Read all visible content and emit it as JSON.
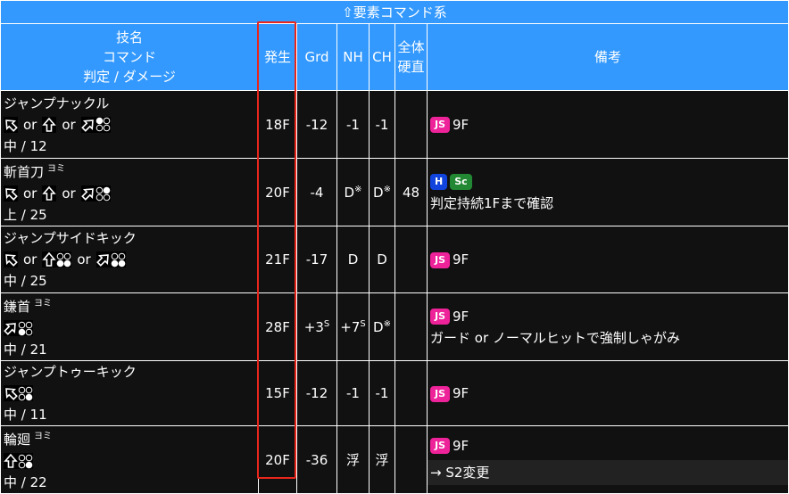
{
  "title": "⇧要素コマンド系",
  "headers": {
    "name": [
      "技名",
      "コマンド",
      "判定 / ダメージ"
    ],
    "startup": "発生",
    "grd": "Grd",
    "nh": "NH",
    "ch": "CH",
    "total": [
      "全体",
      "硬直"
    ],
    "notes": "備考"
  },
  "colors": {
    "header": "#3399ff",
    "js": "#ee2299",
    "h": "#1144dd",
    "sc": "#228833",
    "highlight": "#e8261c"
  },
  "rows": [
    {
      "name": "ジャンプナックル",
      "yomi": "",
      "cmd": [
        {
          "dir": "ub",
          "btn": [
            0,
            0,
            0,
            0
          ]
        },
        "or",
        {
          "dir": "u",
          "btn": [
            0,
            0,
            0,
            0
          ]
        },
        "or",
        {
          "dir": "uf",
          "btn": [
            1,
            0,
            0,
            0
          ]
        }
      ],
      "hit": "中 / 12",
      "startup": "18F",
      "grd": "-12",
      "nh": "-1",
      "ch": "-1",
      "total": "",
      "badges": [
        "JS"
      ],
      "badge_text": "9F",
      "note": "",
      "sub": ""
    },
    {
      "name": "斬首刀",
      "yomi": "ヨミ",
      "cmd": [
        {
          "dir": "ub",
          "btn": [
            0,
            0,
            0,
            0
          ]
        },
        "or",
        {
          "dir": "u",
          "btn": [
            0,
            0,
            0,
            0
          ]
        },
        "or",
        {
          "dir": "uf",
          "btn": [
            0,
            1,
            0,
            0
          ]
        }
      ],
      "hit": "上 / 25",
      "startup": "20F",
      "grd": "-4",
      "nh": "D",
      "nh_sup": "※",
      "ch": "D",
      "ch_sup": "※",
      "total": "48",
      "badges": [
        "H",
        "Sc"
      ],
      "badge_text": "",
      "note": "判定持続1Fまで確認",
      "sub": ""
    },
    {
      "name": "ジャンプサイドキック",
      "yomi": "",
      "cmd": [
        {
          "dir": "ub",
          "btn": [
            0,
            0,
            0,
            0
          ]
        },
        "or",
        {
          "dir": "u",
          "btn": [
            0,
            0,
            1,
            1
          ]
        },
        "or",
        {
          "dir": "uf",
          "btn": [
            0,
            0,
            1,
            1
          ]
        }
      ],
      "hit": "中 / 25",
      "startup": "21F",
      "grd": "-17",
      "nh": "D",
      "ch": "D",
      "total": "",
      "badges": [
        "JS"
      ],
      "badge_text": "9F",
      "note": "",
      "sub": ""
    },
    {
      "name": "鎌首",
      "yomi": "ヨミ",
      "cmd": [
        {
          "dir": "uf",
          "btn": [
            0,
            0,
            1,
            0
          ]
        }
      ],
      "hit": "中 / 21",
      "startup": "28F",
      "grd": "+3",
      "grd_sup": "S",
      "nh": "+7",
      "nh_sup": "S",
      "ch": "D",
      "ch_sup": "※",
      "total": "",
      "badges": [
        "JS"
      ],
      "badge_text": "9F",
      "note": "ガード or ノーマルヒットで強制しゃがみ",
      "sub": ""
    },
    {
      "name": "ジャンプトゥーキック",
      "yomi": "",
      "cmd": [
        {
          "dir": "ub",
          "btn": [
            0,
            0,
            0,
            1
          ]
        }
      ],
      "hit": "中 / 11",
      "startup": "15F",
      "grd": "-12",
      "nh": "-1",
      "ch": "-1",
      "total": "",
      "badges": [
        "JS"
      ],
      "badge_text": "9F",
      "note": "",
      "sub": ""
    },
    {
      "name": "輪廻",
      "yomi": "ヨミ",
      "cmd": [
        {
          "dir": "u",
          "btn": [
            0,
            0,
            0,
            1
          ]
        }
      ],
      "hit": "中 / 22",
      "startup": "20F",
      "grd": "-36",
      "nh": "浮",
      "ch": "浮",
      "total": "",
      "badges": [
        "JS"
      ],
      "badge_text": "9F",
      "note": "",
      "sub": "→ S2変更"
    }
  ]
}
